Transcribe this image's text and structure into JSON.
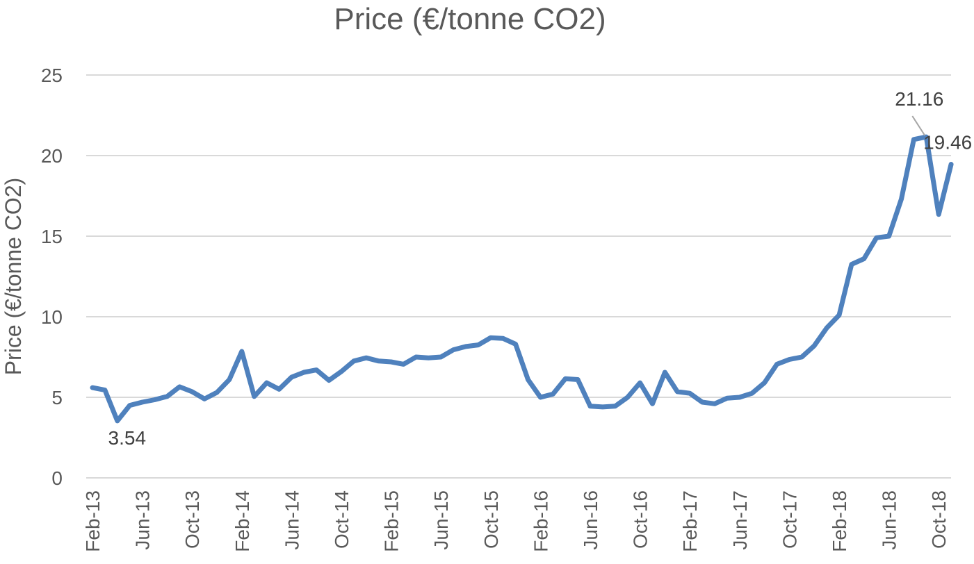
{
  "chart_data": {
    "type": "line",
    "title": "Price (€/tonne CO2)",
    "xlabel": "",
    "ylabel": "Price (€/tonne CO2)",
    "ylim": [
      0,
      25
    ],
    "yticks": [
      0,
      5,
      10,
      15,
      20,
      25
    ],
    "grid": true,
    "legend": "none",
    "line_color": "#4f81bd",
    "x_tick_labels": [
      "Feb-13",
      "Jun-13",
      "Oct-13",
      "Feb-14",
      "Jun-14",
      "Oct-14",
      "Feb-15",
      "Jun-15",
      "Oct-15",
      "Feb-16",
      "Jun-16",
      "Oct-16",
      "Feb-17",
      "Jun-17",
      "Oct-17",
      "Feb-18",
      "Jun-18",
      "Oct-18"
    ],
    "x": [
      "Feb-13",
      "Mar-13",
      "Apr-13",
      "May-13",
      "Jun-13",
      "Jul-13",
      "Aug-13",
      "Sep-13",
      "Oct-13",
      "Nov-13",
      "Dec-13",
      "Jan-14",
      "Feb-14",
      "Mar-14",
      "Apr-14",
      "May-14",
      "Jun-14",
      "Jul-14",
      "Aug-14",
      "Sep-14",
      "Oct-14",
      "Nov-14",
      "Dec-14",
      "Jan-15",
      "Feb-15",
      "Mar-15",
      "Apr-15",
      "May-15",
      "Jun-15",
      "Jul-15",
      "Aug-15",
      "Sep-15",
      "Oct-15",
      "Nov-15",
      "Dec-15",
      "Jan-16",
      "Feb-16",
      "Mar-16",
      "Apr-16",
      "May-16",
      "Jun-16",
      "Jul-16",
      "Aug-16",
      "Sep-16",
      "Oct-16",
      "Nov-16",
      "Dec-16",
      "Jan-17",
      "Feb-17",
      "Mar-17",
      "Apr-17",
      "May-17",
      "Jun-17",
      "Jul-17",
      "Aug-17",
      "Sep-17",
      "Oct-17",
      "Nov-17",
      "Dec-17",
      "Jan-18",
      "Feb-18",
      "Mar-18",
      "Apr-18",
      "May-18",
      "Jun-18",
      "Jul-18",
      "Aug-18",
      "Sep-18",
      "Oct-18",
      "Nov-18"
    ],
    "series": [
      {
        "values": [
          5.6,
          5.45,
          3.54,
          4.5,
          4.7,
          4.85,
          5.05,
          5.65,
          5.35,
          4.9,
          5.3,
          6.1,
          7.85,
          5.05,
          5.9,
          5.5,
          6.25,
          6.55,
          6.7,
          6.05,
          6.6,
          7.25,
          7.45,
          7.25,
          7.2,
          7.05,
          7.5,
          7.45,
          7.5,
          7.95,
          8.15,
          8.25,
          8.7,
          8.65,
          8.3,
          6.1,
          5.0,
          5.2,
          6.15,
          6.1,
          4.45,
          4.4,
          4.45,
          5.0,
          5.9,
          4.6,
          6.55,
          5.35,
          5.25,
          4.7,
          4.6,
          4.95,
          5.0,
          5.25,
          5.9,
          7.05,
          7.35,
          7.5,
          8.2,
          9.3,
          10.1,
          13.25,
          13.6,
          14.9,
          15.0,
          17.3,
          21.0,
          21.16,
          16.35,
          19.46
        ]
      }
    ],
    "annotations": [
      {
        "label": "3.54",
        "x": "Apr-13",
        "y": 3.54
      },
      {
        "label": "21.16",
        "x": "Sep-18",
        "y": 21.16
      },
      {
        "label": "19.46",
        "x": "Nov-18",
        "y": 19.46
      }
    ]
  }
}
